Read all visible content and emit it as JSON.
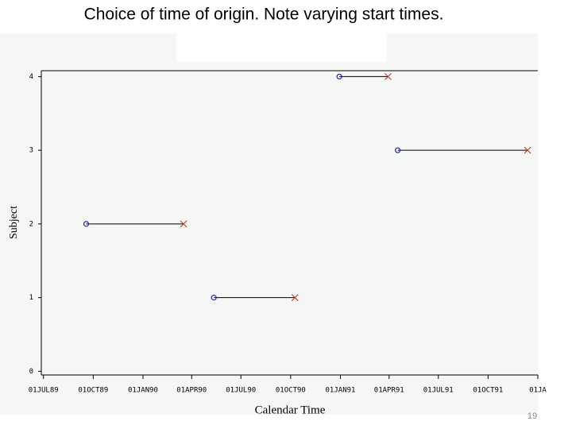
{
  "chart_data": {
    "type": "interval",
    "title": "Choice of time of origin.  Note varying start times.",
    "ylabel": "Subject",
    "xlabel": "Calendar Time",
    "page_number": "19",
    "y": [
      1,
      2,
      3,
      4
    ],
    "x_start": [
      "1990-05-12",
      "1989-09-18",
      "1991-04-17",
      "1990-12-30"
    ],
    "x_end": [
      "1990-10-09",
      "1990-03-17",
      "1991-12-13",
      "1991-03-30"
    ],
    "start_color": "#1f2bb0",
    "end_color": "#c0392b",
    "line_color": "#000000",
    "xlim": [
      "1989-06-27",
      "1992-01-01"
    ],
    "xticks": [
      {
        "value": "1989-07-01",
        "label": "01JUL89"
      },
      {
        "value": "1989-10-01",
        "label": "01OCT89"
      },
      {
        "value": "1990-01-01",
        "label": "01JAN90"
      },
      {
        "value": "1990-04-01",
        "label": "01APR90"
      },
      {
        "value": "1990-07-01",
        "label": "01JUL90"
      },
      {
        "value": "1990-10-01",
        "label": "01OCT90"
      },
      {
        "value": "1991-01-01",
        "label": "01JAN91"
      },
      {
        "value": "1991-04-01",
        "label": "01APR91"
      },
      {
        "value": "1991-07-01",
        "label": "01JUL91"
      },
      {
        "value": "1991-10-01",
        "label": "01OCT91"
      },
      {
        "value": "1992-01-01",
        "label": "01JA"
      }
    ],
    "ylim": [
      -0.05,
      4.08
    ],
    "yticks": [
      0,
      1,
      2,
      3,
      4
    ]
  }
}
